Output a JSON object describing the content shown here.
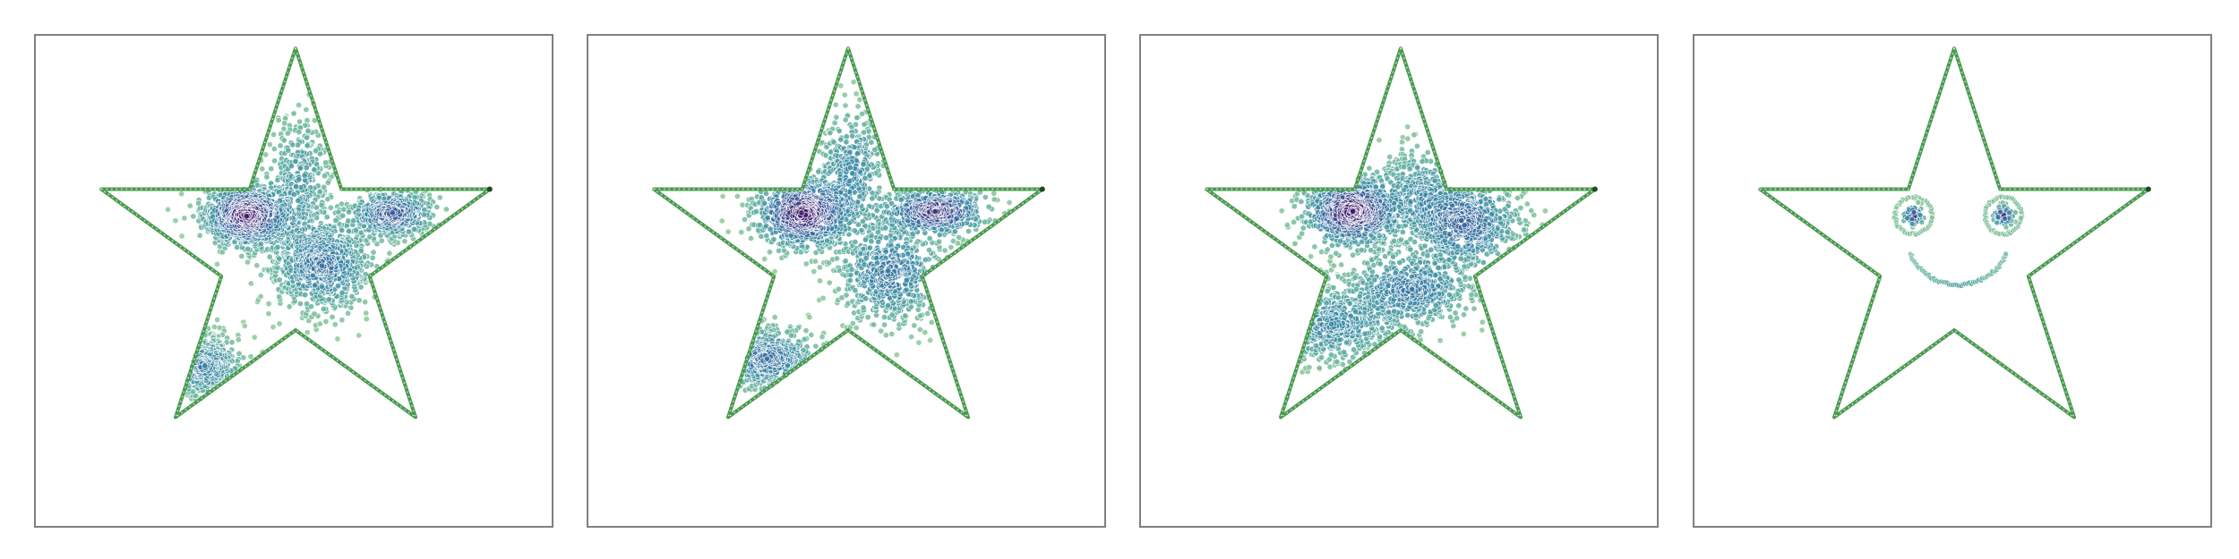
{
  "figure": {
    "background": "#ffffff",
    "frame_color": "#808080"
  },
  "chart_data": [
    {
      "type": "scatter",
      "panel": 1,
      "title": "",
      "xlabel": "",
      "ylabel": "",
      "grid": false,
      "legend": "none",
      "axes_visible": false,
      "xlim": [
        -1.05,
        1.05
      ],
      "ylim": [
        -1.0,
        1.1
      ],
      "star_outline": {
        "color": "#4a9a50",
        "points": [
          [
            0.0,
            1.0
          ],
          [
            0.2245,
            0.309
          ],
          [
            0.9511,
            0.309
          ],
          [
            0.3633,
            -0.118
          ],
          [
            0.5878,
            -0.809
          ],
          [
            0.0,
            -0.382
          ],
          [
            -0.5878,
            -0.809
          ],
          [
            -0.3633,
            -0.118
          ],
          [
            -0.9511,
            0.309
          ],
          [
            -0.2245,
            0.309
          ]
        ]
      },
      "colormap": "viridis-light",
      "clusters": [
        {
          "center": [
            -0.24,
            0.18
          ],
          "spread": [
            0.11,
            0.08
          ],
          "count": 900
        },
        {
          "center": [
            0.47,
            0.19
          ],
          "spread": [
            0.11,
            0.06
          ],
          "count": 450
        },
        {
          "center": [
            0.13,
            -0.06
          ],
          "spread": [
            0.13,
            0.12
          ],
          "count": 800
        },
        {
          "center": [
            -0.45,
            -0.56
          ],
          "spread": [
            0.1,
            0.08
          ],
          "count": 350
        },
        {
          "center": [
            0.02,
            0.37
          ],
          "spread": [
            0.08,
            0.16
          ],
          "count": 350
        }
      ]
    },
    {
      "type": "scatter",
      "panel": 2,
      "title": "",
      "xlabel": "",
      "ylabel": "",
      "grid": false,
      "legend": "none",
      "axes_visible": false,
      "xlim": [
        -1.05,
        1.05
      ],
      "ylim": [
        -1.0,
        1.1
      ],
      "star_outline": {
        "color": "#4a9a50",
        "points": [
          [
            0.0,
            1.0
          ],
          [
            0.2245,
            0.309
          ],
          [
            0.9511,
            0.309
          ],
          [
            0.3633,
            -0.118
          ],
          [
            0.5878,
            -0.809
          ],
          [
            0.0,
            -0.382
          ],
          [
            -0.5878,
            -0.809
          ],
          [
            -0.3633,
            -0.118
          ],
          [
            -0.9511,
            0.309
          ],
          [
            -0.2245,
            0.309
          ]
        ]
      },
      "colormap": "viridis-light",
      "clusters": [
        {
          "center": [
            -0.22,
            0.19
          ],
          "spread": [
            0.12,
            0.09
          ],
          "count": 800
        },
        {
          "center": [
            0.43,
            0.2
          ],
          "spread": [
            0.13,
            0.06
          ],
          "count": 500
        },
        {
          "center": [
            0.2,
            -0.1
          ],
          "spread": [
            0.13,
            0.13
          ],
          "count": 600
        },
        {
          "center": [
            -0.4,
            -0.52
          ],
          "spread": [
            0.13,
            0.08
          ],
          "count": 400
        },
        {
          "center": [
            0.02,
            0.4
          ],
          "spread": [
            0.09,
            0.15
          ],
          "count": 350
        }
      ]
    },
    {
      "type": "scatter",
      "panel": 3,
      "title": "",
      "xlabel": "",
      "ylabel": "",
      "grid": false,
      "legend": "none",
      "axes_visible": false,
      "xlim": [
        -1.05,
        1.05
      ],
      "ylim": [
        -1.0,
        1.1
      ],
      "star_outline": {
        "color": "#4a9a50",
        "points": [
          [
            0.0,
            1.0
          ],
          [
            0.2245,
            0.309
          ],
          [
            0.9511,
            0.309
          ],
          [
            0.3633,
            -0.118
          ],
          [
            0.5878,
            -0.809
          ],
          [
            0.0,
            -0.382
          ],
          [
            -0.5878,
            -0.809
          ],
          [
            -0.3633,
            -0.118
          ],
          [
            -0.9511,
            0.309
          ],
          [
            -0.2245,
            0.309
          ]
        ]
      },
      "colormap": "viridis-light",
      "clusters": [
        {
          "center": [
            -0.24,
            0.2
          ],
          "spread": [
            0.12,
            0.09
          ],
          "count": 800
        },
        {
          "center": [
            0.32,
            0.14
          ],
          "spread": [
            0.14,
            0.11
          ],
          "count": 650
        },
        {
          "center": [
            0.05,
            -0.18
          ],
          "spread": [
            0.16,
            0.1
          ],
          "count": 550
        },
        {
          "center": [
            -0.34,
            -0.36
          ],
          "spread": [
            0.16,
            0.1
          ],
          "count": 450
        },
        {
          "center": [
            0.1,
            0.3
          ],
          "spread": [
            0.12,
            0.12
          ],
          "count": 300
        }
      ]
    },
    {
      "type": "scatter",
      "panel": 4,
      "title": "",
      "xlabel": "",
      "ylabel": "",
      "grid": false,
      "legend": "none",
      "axes_visible": false,
      "xlim": [
        -1.05,
        1.05
      ],
      "ylim": [
        -1.0,
        1.1
      ],
      "star_outline": {
        "color": "#4a9a50",
        "points": [
          [
            0.0,
            1.0
          ],
          [
            0.2245,
            0.309
          ],
          [
            0.9511,
            0.309
          ],
          [
            0.3633,
            -0.118
          ],
          [
            0.5878,
            -0.809
          ],
          [
            0.0,
            -0.382
          ],
          [
            -0.5878,
            -0.809
          ],
          [
            -0.3633,
            -0.118
          ],
          [
            -0.9511,
            0.309
          ],
          [
            -0.2245,
            0.309
          ]
        ]
      },
      "colormap": "viridis-light",
      "face": {
        "left_eye": {
          "center": [
            -0.2,
            0.18
          ],
          "ring_radius": 0.09,
          "core_radius": 0.045
        },
        "right_eye": {
          "center": [
            0.24,
            0.18
          ],
          "ring_radius": 0.09,
          "core_radius": 0.045
        },
        "smile": {
          "center": [
            0.02,
            0.1
          ],
          "radius": 0.26,
          "start_deg": 205,
          "end_deg": 335
        }
      }
    }
  ]
}
